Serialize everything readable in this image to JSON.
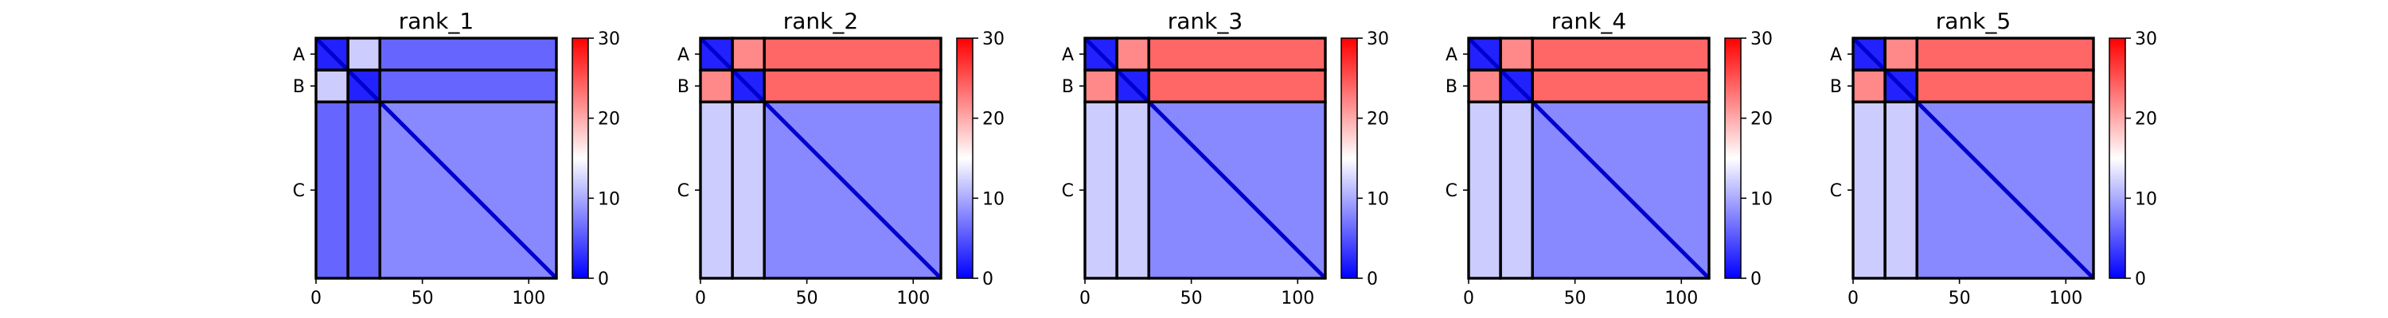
{
  "chart_data": {
    "type": "heatmap",
    "colormap": {
      "name": "bwr",
      "stops": [
        "#0000ff",
        "#ffffff",
        "#ff0000"
      ],
      "min": 0,
      "max": 30
    },
    "colorbar_ticks": [
      0,
      10,
      20,
      30
    ],
    "colorbar_tick_labels": [
      "0",
      "10",
      "20",
      "30"
    ],
    "axis_range": [
      0,
      113
    ],
    "x_ticks": [
      0,
      50,
      100
    ],
    "x_tick_labels": [
      "0",
      "50",
      "100"
    ],
    "chains": [
      {
        "name": "A",
        "start": 0,
        "end": 15
      },
      {
        "name": "B",
        "start": 15,
        "end": 30
      },
      {
        "name": "C",
        "start": 30,
        "end": 113
      }
    ],
    "panels": [
      {
        "title": "rank_1",
        "blocks": [
          [
            2,
            12,
            6
          ],
          [
            12,
            2,
            6
          ],
          [
            6,
            6,
            8
          ]
        ]
      },
      {
        "title": "rank_2",
        "blocks": [
          [
            2,
            22,
            24
          ],
          [
            22,
            2,
            24
          ],
          [
            12,
            12,
            8
          ]
        ]
      },
      {
        "title": "rank_3",
        "blocks": [
          [
            2,
            22,
            24
          ],
          [
            22,
            2,
            24
          ],
          [
            12,
            12,
            8
          ]
        ]
      },
      {
        "title": "rank_4",
        "blocks": [
          [
            2,
            22,
            24
          ],
          [
            22,
            2,
            24
          ],
          [
            12,
            12,
            8
          ]
        ]
      },
      {
        "title": "rank_5",
        "blocks": [
          [
            2,
            22,
            24
          ],
          [
            22,
            2,
            24
          ],
          [
            12,
            12,
            8
          ]
        ]
      }
    ]
  }
}
